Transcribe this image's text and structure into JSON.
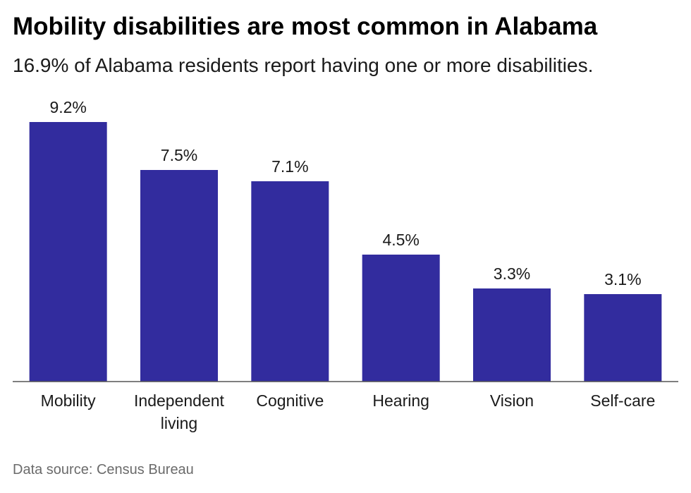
{
  "title": "Mobility disabilities are most common in Alabama",
  "subtitle": "16.9% of Alabama residents report having one or more disabilities.",
  "source": "Data source: Census Bureau",
  "colors": {
    "bar": "#322c9e",
    "axis": "#555555"
  },
  "chart_data": {
    "type": "bar",
    "categories": [
      "Mobility",
      "Independent living",
      "Cognitive",
      "Hearing",
      "Vision",
      "Self-care"
    ],
    "category_label_lines": [
      [
        "Mobility"
      ],
      [
        "Independent",
        "living"
      ],
      [
        "Cognitive"
      ],
      [
        "Hearing"
      ],
      [
        "Vision"
      ],
      [
        "Self-care"
      ]
    ],
    "values": [
      9.2,
      7.5,
      7.1,
      4.5,
      3.3,
      3.1
    ],
    "data_labels": [
      "9.2%",
      "7.5%",
      "7.1%",
      "4.5%",
      "3.3%",
      "3.1%"
    ],
    "title": "Mobility disabilities are most common in Alabama",
    "subtitle": "16.9% of Alabama residents report having one or more disabilities.",
    "xlabel": "",
    "ylabel": "",
    "ylim": [
      0,
      9.2
    ],
    "grid": false,
    "legend": "none"
  }
}
